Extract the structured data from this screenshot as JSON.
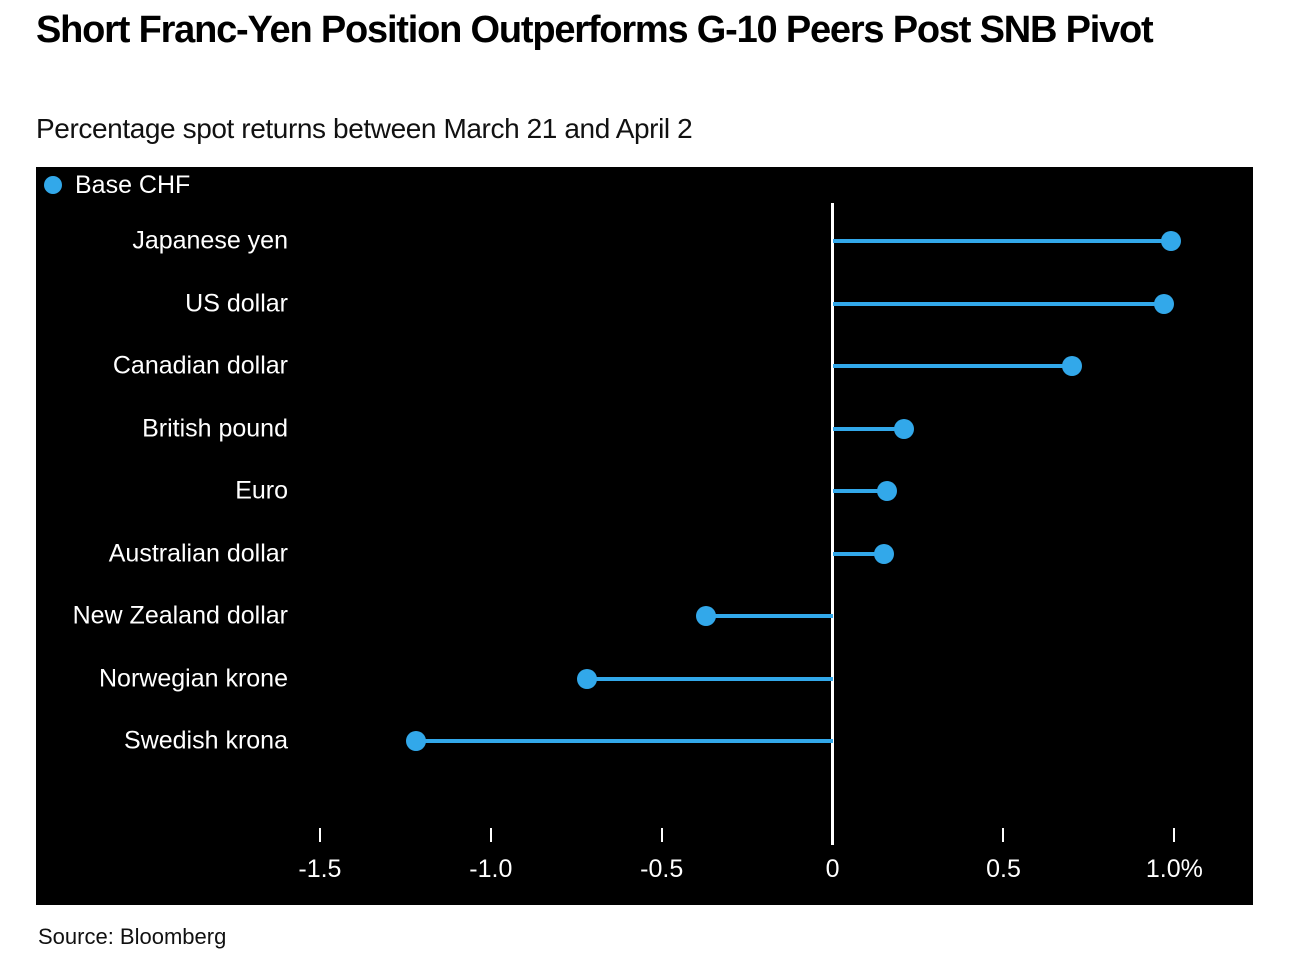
{
  "header": {
    "title": "Short Franc-Yen Position Outperforms G-10 Peers Post SNB Pivot",
    "subtitle": "Percentage spot returns between March 21 and April 2"
  },
  "legend": {
    "label": "Base CHF",
    "marker_color": "#32A8EA"
  },
  "chart_data": {
    "type": "bar",
    "subtype": "horizontal-lollipop",
    "title": "Short Franc-Yen Position Outperforms G-10 Peers Post SNB Pivot",
    "subtitle": "Percentage spot returns between March 21 and April 2",
    "series_name": "Base CHF",
    "categories": [
      "Japanese yen",
      "US dollar",
      "Canadian dollar",
      "British pound",
      "Euro",
      "Australian dollar",
      "New Zealand dollar",
      "Norwegian krone",
      "Swedish krona"
    ],
    "values": [
      0.99,
      0.97,
      0.7,
      0.21,
      0.16,
      0.15,
      -0.37,
      -0.72,
      -1.22
    ],
    "unit": "%",
    "xlim": [
      -1.57,
      1.23
    ],
    "x_ticks": [
      {
        "value": -1.5,
        "label": "-1.5"
      },
      {
        "value": -1.0,
        "label": "-1.0"
      },
      {
        "value": -0.5,
        "label": "-0.5"
      },
      {
        "value": 0,
        "label": "0"
      },
      {
        "value": 0.5,
        "label": "0.5"
      },
      {
        "value": 1.0,
        "label": "1.0%"
      }
    ],
    "grid": false,
    "legend_position": "top-left",
    "colors": {
      "marker": "#32A8EA",
      "axis_line": "#ffffff",
      "plot_background": "#000000",
      "label_text": "#ffffff"
    }
  },
  "footer": {
    "source": "Source: Bloomberg"
  }
}
